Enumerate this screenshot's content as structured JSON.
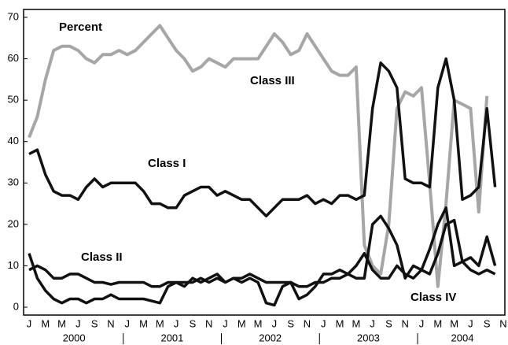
{
  "chart_data": {
    "type": "line",
    "title": "Percent",
    "categories": [
      "J",
      null,
      "M",
      null,
      "M",
      null,
      "J",
      null,
      "S",
      null,
      "N",
      null,
      "J",
      null,
      "M",
      null,
      "M",
      null,
      "J",
      null,
      "S",
      null,
      "N",
      null,
      "J",
      null,
      "M",
      null,
      "M",
      null,
      "J",
      null,
      "S",
      null,
      "N",
      null,
      "J",
      null,
      "M",
      null,
      "M",
      null,
      "J",
      null,
      "S",
      null,
      "N",
      null,
      "J",
      null,
      "M",
      null,
      "M",
      null,
      "J",
      null,
      "S",
      null,
      "N"
    ],
    "years": [
      "2000",
      "2001",
      "2002",
      "2003",
      "2004"
    ],
    "ylim": [
      0,
      70
    ],
    "yticks": [
      0,
      10,
      20,
      30,
      40,
      50,
      60,
      70
    ],
    "grid": false,
    "series": [
      {
        "name": "Class III",
        "color": "#a6a6a6",
        "values": [
          41,
          46,
          55,
          62,
          63,
          63,
          62,
          60,
          59,
          61,
          61,
          62,
          61,
          62,
          64,
          66,
          68,
          65,
          62,
          60,
          57,
          58,
          60,
          59,
          58,
          60,
          60,
          60,
          60,
          63,
          66,
          64,
          61,
          62,
          66,
          63,
          60,
          57,
          56,
          56,
          58,
          15,
          10,
          8,
          20,
          48,
          52,
          51,
          53,
          30,
          5,
          25,
          50,
          49,
          48,
          23,
          51,
          null,
          null
        ]
      },
      {
        "name": "Class I",
        "color": "#111111",
        "values": [
          37,
          38,
          32,
          28,
          27,
          27,
          26,
          29,
          31,
          29,
          30,
          30,
          30,
          30,
          28,
          25,
          25,
          24,
          24,
          27,
          28,
          29,
          29,
          27,
          28,
          27,
          26,
          26,
          24,
          22,
          24,
          26,
          26,
          26,
          27,
          25,
          26,
          25,
          27,
          27,
          26,
          27,
          48,
          59,
          57,
          53,
          31,
          30,
          30,
          29,
          53,
          60,
          50,
          26,
          27,
          29,
          48,
          29,
          null
        ]
      },
      {
        "name": "Class II",
        "color": "#111111",
        "values": [
          9,
          10,
          9,
          7,
          7,
          8,
          8,
          7,
          6,
          6,
          5.5,
          6,
          6,
          6,
          6,
          5,
          5,
          6,
          6,
          6,
          6,
          7,
          6,
          7,
          6,
          7,
          7,
          8,
          7,
          6,
          6,
          6,
          6,
          5,
          5,
          6,
          6,
          7,
          7,
          8,
          7,
          7,
          20,
          22,
          19,
          15,
          7,
          10,
          9,
          8,
          13,
          20,
          21,
          11,
          12,
          10,
          17,
          10,
          null
        ]
      },
      {
        "name": "Class IV",
        "color": "#111111",
        "values": [
          13,
          7,
          4,
          2,
          1,
          2,
          2,
          1,
          2,
          2,
          3,
          2,
          2,
          2,
          2,
          1.5,
          1,
          5,
          6,
          5,
          7,
          6,
          7,
          8,
          6,
          7,
          6,
          7,
          6,
          1,
          0.5,
          5,
          6,
          2,
          3,
          5,
          8,
          8,
          9,
          8,
          10,
          13,
          9,
          7,
          7,
          10,
          8,
          7,
          9,
          14,
          20,
          24,
          10,
          11,
          9,
          8,
          9,
          8,
          null
        ]
      }
    ]
  }
}
